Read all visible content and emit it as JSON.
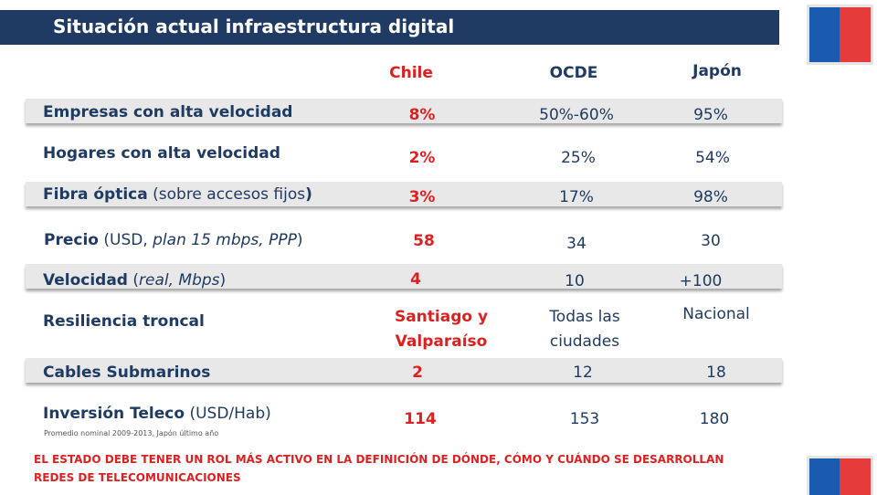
{
  "title": "Situación actual infraestructura digital",
  "colors": {
    "title_bar": "#1f3b63",
    "text": "#1f3b63",
    "accent_red": "#e02020",
    "flag_blue": "#1a5bb0",
    "flag_red": "#e53b3b"
  },
  "headers": {
    "chile": "Chile",
    "ocde": "OCDE",
    "japon": "Japón"
  },
  "rows": [
    {
      "label": "Empresas con alta velocidad",
      "note": "",
      "chile": "8%",
      "ocde": "50%-60%",
      "japon": "95%"
    },
    {
      "label": "Hogares con alta velocidad",
      "note": "",
      "chile": "2%",
      "ocde": "25%",
      "japon": "54%"
    },
    {
      "label": "Fibra óptica",
      "note": " (sobre accesos fijos",
      "label_end": ")",
      "chile": "3%",
      "ocde": "17%",
      "japon": "98%"
    },
    {
      "label": "Precio",
      "note": " (USD, plan 15 mbps, PPP)",
      "chile": "58",
      "ocde": "34",
      "japon": "30"
    },
    {
      "label": "Velocidad",
      "note": "  (real, Mbps)",
      "chile": "4",
      "ocde": "10",
      "japon": "+100"
    },
    {
      "label": "Resiliencia troncal",
      "note": "",
      "chile": "Santiago y Valparaíso",
      "ocde": "Todas las ciudades",
      "japon": "Nacional"
    },
    {
      "label": "Cables Submarinos",
      "note": "",
      "chile": "2",
      "ocde": "12",
      "japon": "18"
    },
    {
      "label": "Inversión Teleco",
      "note": " (USD/Hab)",
      "chile": "114",
      "ocde": "153",
      "japon": "180"
    }
  ],
  "inversion_note": "Promedio nominal 2009-2013, Japón último año",
  "footer": "EL ESTADO DEBE TENER UN ROL MÁS ACTIVO EN LA DEFINICIÓN DE DÓNDE, CÓMO Y CUÁNDO SE DESARROLLAN REDES DE TELECOMUNICACIONES"
}
